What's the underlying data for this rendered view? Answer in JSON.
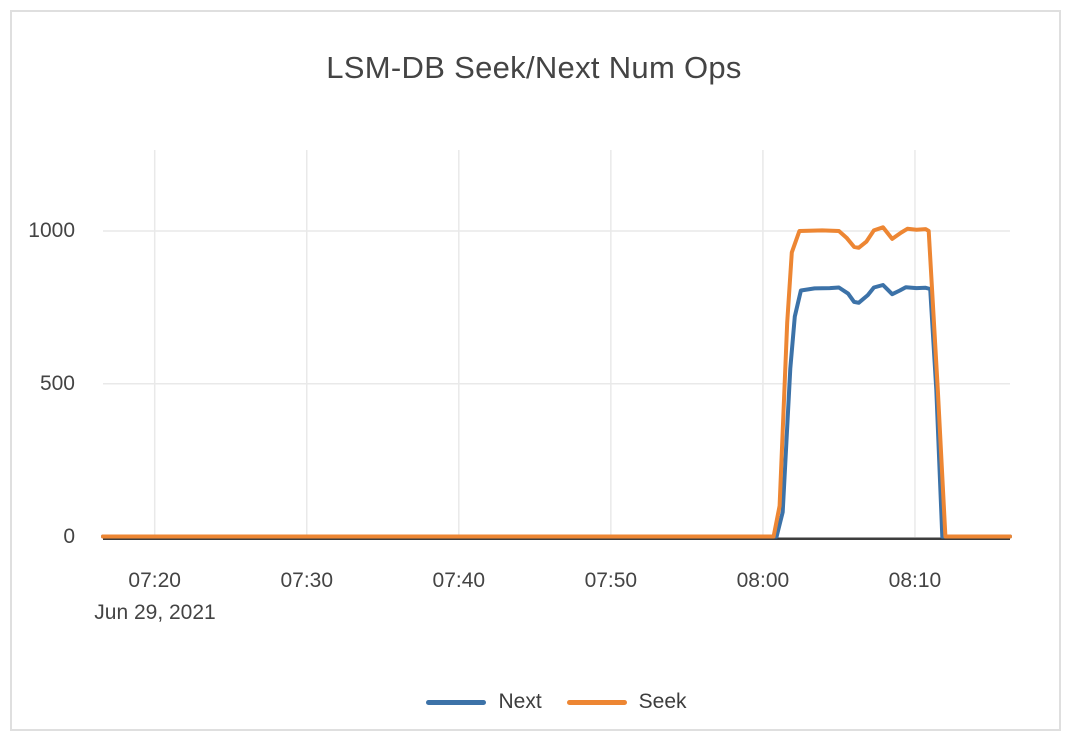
{
  "chart_data": {
    "type": "line",
    "title": "LSM-DB Seek/Next Num Ops",
    "legend_position": "bottom-center",
    "grid": true,
    "x_axis": {
      "date_label": "Jun 29, 2021",
      "unit": "time (minutes since 07:00, Jun 29 2021)",
      "ticks": [
        {
          "label": "07:20",
          "minute": 20
        },
        {
          "label": "07:30",
          "minute": 30
        },
        {
          "label": "07:40",
          "minute": 40
        },
        {
          "label": "07:50",
          "minute": 50
        },
        {
          "label": "08:00",
          "minute": 60
        },
        {
          "label": "08:10",
          "minute": 70
        }
      ],
      "range_minutes": [
        16.6,
        76.25
      ]
    },
    "y_axis": {
      "ticks": [
        {
          "label": "0",
          "value": 0
        },
        {
          "label": "500",
          "value": 500
        },
        {
          "label": "1000",
          "value": 1000
        }
      ],
      "range": [
        0,
        1265
      ]
    },
    "style": {
      "grid_color": "#E9E9E9",
      "zero_line_color": "#3D3D3D",
      "text_color": "#444444",
      "card_border_color": "#DFDFDF"
    },
    "series": [
      {
        "name": "Next",
        "color": "#3C72A8",
        "points": [
          [
            16.6,
            0
          ],
          [
            25,
            0
          ],
          [
            35,
            0
          ],
          [
            45,
            0
          ],
          [
            55,
            0
          ],
          [
            60.9,
            0
          ],
          [
            61.3,
            80
          ],
          [
            61.8,
            550
          ],
          [
            62.1,
            720
          ],
          [
            62.5,
            805
          ],
          [
            63.4,
            812
          ],
          [
            64.4,
            813
          ],
          [
            65.0,
            815
          ],
          [
            65.6,
            795
          ],
          [
            66.0,
            768
          ],
          [
            66.3,
            765
          ],
          [
            66.9,
            790
          ],
          [
            67.3,
            815
          ],
          [
            67.9,
            823
          ],
          [
            68.5,
            793
          ],
          [
            69.0,
            805
          ],
          [
            69.4,
            816
          ],
          [
            70.1,
            813
          ],
          [
            70.7,
            814
          ],
          [
            71.0,
            810
          ],
          [
            71.4,
            480
          ],
          [
            71.8,
            0
          ],
          [
            73,
            0
          ],
          [
            76.25,
            0
          ]
        ]
      },
      {
        "name": "Seek",
        "color": "#ED8633",
        "points": [
          [
            16.6,
            0
          ],
          [
            25,
            0
          ],
          [
            35,
            0
          ],
          [
            45,
            0
          ],
          [
            55,
            0
          ],
          [
            60.7,
            0
          ],
          [
            61.1,
            100
          ],
          [
            61.6,
            700
          ],
          [
            61.9,
            930
          ],
          [
            62.4,
            1000
          ],
          [
            63.9,
            1002
          ],
          [
            65.0,
            1000
          ],
          [
            65.5,
            978
          ],
          [
            66.0,
            948
          ],
          [
            66.3,
            945
          ],
          [
            66.8,
            965
          ],
          [
            67.3,
            1002
          ],
          [
            67.9,
            1012
          ],
          [
            68.5,
            974
          ],
          [
            69.1,
            995
          ],
          [
            69.5,
            1007
          ],
          [
            70.1,
            1004
          ],
          [
            70.7,
            1006
          ],
          [
            70.9,
            1000
          ],
          [
            71.5,
            480
          ],
          [
            72.0,
            0
          ],
          [
            73,
            0
          ],
          [
            76.25,
            0
          ]
        ]
      }
    ]
  }
}
